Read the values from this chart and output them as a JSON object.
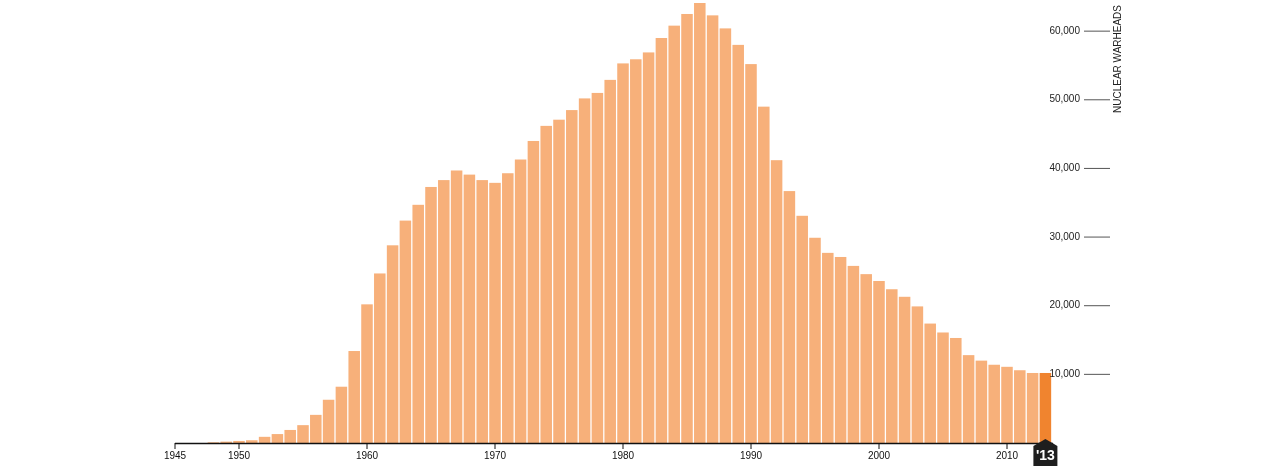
{
  "chart_data": {
    "type": "bar",
    "ylabel": "NUCLEAR WARHEADS",
    "x": [
      1945,
      1946,
      1947,
      1948,
      1949,
      1950,
      1951,
      1952,
      1953,
      1954,
      1955,
      1956,
      1957,
      1958,
      1959,
      1960,
      1961,
      1962,
      1963,
      1964,
      1965,
      1966,
      1967,
      1968,
      1969,
      1970,
      1971,
      1972,
      1973,
      1974,
      1975,
      1976,
      1977,
      1978,
      1979,
      1980,
      1981,
      1982,
      1983,
      1984,
      1985,
      1986,
      1987,
      1988,
      1989,
      1990,
      1991,
      1992,
      1993,
      1994,
      1995,
      1996,
      1997,
      1998,
      1999,
      2000,
      2001,
      2002,
      2003,
      2004,
      2005,
      2006,
      2007,
      2008,
      2009,
      2010,
      2011,
      2012,
      2013
    ],
    "values": [
      0,
      0,
      0,
      100,
      200,
      300,
      400,
      900,
      1300,
      1900,
      2600,
      4100,
      6300,
      8200,
      13400,
      20200,
      24700,
      28800,
      32400,
      34700,
      37300,
      38300,
      39700,
      39100,
      38300,
      37900,
      39300,
      41300,
      44000,
      46200,
      47100,
      48500,
      50200,
      51000,
      52900,
      55300,
      55900,
      56900,
      59000,
      60800,
      62500,
      64100,
      62300,
      60400,
      58000,
      55200,
      49000,
      41200,
      36700,
      33100,
      29900,
      27700,
      27100,
      25800,
      24600,
      23600,
      22400,
      21300,
      19900,
      17400,
      16100,
      15300,
      12800,
      12000,
      11400,
      11100,
      10600,
      10200,
      10200
    ],
    "colors": [
      "#f7b07a",
      "#f7b07a",
      "#f7b07a",
      "#f7b07a",
      "#f7b07a",
      "#f7b07a",
      "#f7b07a",
      "#f7b07a",
      "#f7b07a",
      "#f7b07a",
      "#f7b07a",
      "#f7b07a",
      "#f7b07a",
      "#f7b07a",
      "#f7b07a",
      "#f7b07a",
      "#f7b07a",
      "#f7b07a",
      "#f7b07a",
      "#f7b07a",
      "#f7b07a",
      "#f7b07a",
      "#f7b07a",
      "#f7b07a",
      "#f7b07a",
      "#f7b07a",
      "#f7b07a",
      "#f7b07a",
      "#f7b07a",
      "#f7b07a",
      "#f7b07a",
      "#f7b07a",
      "#f7b07a",
      "#f7b07a",
      "#f7b07a",
      "#f7b07a",
      "#f7b07a",
      "#f7b07a",
      "#f7b07a",
      "#f7b07a",
      "#f7b07a",
      "#f7b07a",
      "#f7b07a",
      "#f7b07a",
      "#f7b07a",
      "#f7b07a",
      "#f7b07a",
      "#f7b07a",
      "#f7b07a",
      "#f7b07a",
      "#f7b07a",
      "#f7b07a",
      "#f7b07a",
      "#f7b07a",
      "#f7b07a",
      "#f7b07a",
      "#f7b07a",
      "#f7b07a",
      "#f7b07a",
      "#f7b07a",
      "#f7b07a",
      "#f7b07a",
      "#f7b07a",
      "#f7b07a",
      "#f7b07a",
      "#f7b07a",
      "#f7b07a",
      "#f7b07a",
      "#f0842f"
    ],
    "xlim": [
      1945,
      2013.6
    ],
    "xticks": [
      1945,
      1950,
      1960,
      1970,
      1980,
      1990,
      2000,
      2010,
      {
        "value": 2013,
        "label": "'13"
      }
    ],
    "ylim": [
      0,
      64100
    ],
    "yticks": [
      {
        "value": 10000,
        "label": "10,000"
      },
      {
        "value": 20000,
        "label": "20,000"
      },
      {
        "value": 30000,
        "label": "30,000"
      },
      {
        "value": 40000,
        "label": "40,000"
      },
      {
        "value": 50000,
        "label": "50,000"
      },
      {
        "value": 60000,
        "label": "60,000"
      }
    ]
  }
}
